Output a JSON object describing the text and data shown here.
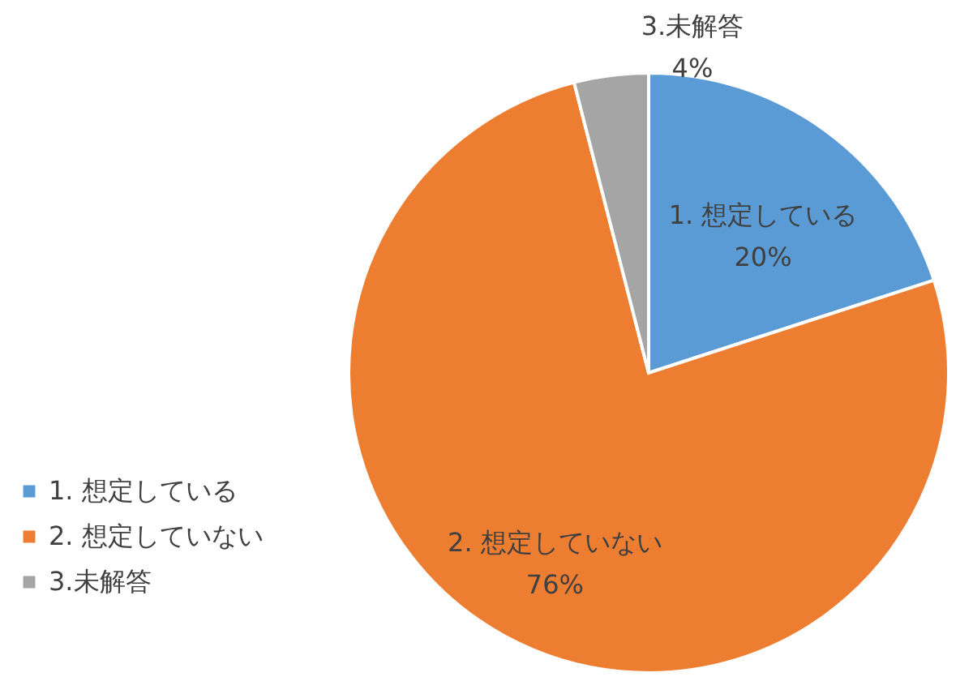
{
  "chart_data": {
    "type": "pie",
    "categories": [
      "1. 想定している",
      "2. 想定していない",
      "3.未解答"
    ],
    "values": [
      20,
      76,
      4
    ],
    "colors": [
      "#5b9bd5",
      "#ed7d31",
      "#a5a5a5"
    ],
    "value_labels": [
      "20%",
      "76%",
      "4%"
    ],
    "legend": "bottom left"
  }
}
